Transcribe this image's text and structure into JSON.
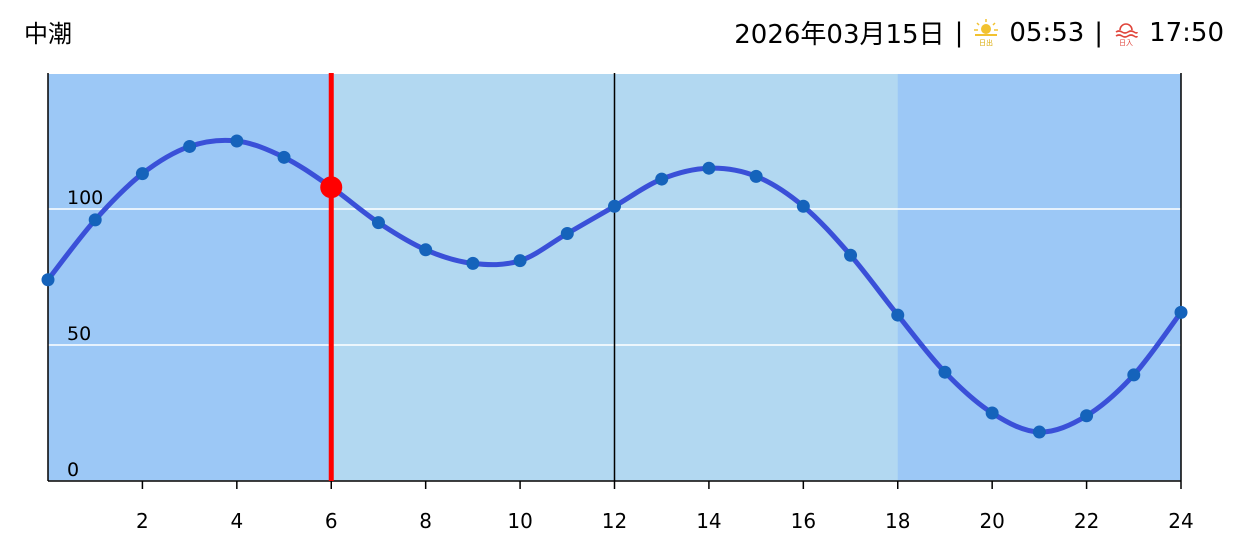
{
  "header": {
    "title": "中潮",
    "date": "2026年03月15日",
    "separator": "|",
    "sunrise_icon_label": "日出",
    "sunrise": "05:53",
    "sunset_icon_label": "日入",
    "sunset": "17:50"
  },
  "chart_data": {
    "type": "line",
    "x": [
      0,
      1,
      2,
      3,
      4,
      5,
      6,
      7,
      8,
      9,
      10,
      11,
      12,
      13,
      14,
      15,
      16,
      17,
      18,
      19,
      20,
      21,
      22,
      23,
      24
    ],
    "series": [
      {
        "color": "#3a50d8",
        "marker_color": "#1563bb",
        "values": [
          74,
          96,
          113,
          123,
          125,
          119,
          108,
          95,
          85,
          80,
          81,
          91,
          101,
          111,
          115,
          112,
          101,
          83,
          61,
          40,
          25,
          18,
          24,
          39,
          62
        ]
      }
    ],
    "highlight": {
      "x": 6,
      "y": 108,
      "color": "#ff0000"
    },
    "xlim": [
      0,
      24
    ],
    "ylim": [
      0,
      150
    ],
    "xticks": [
      2,
      4,
      6,
      8,
      10,
      12,
      14,
      16,
      18,
      20,
      22,
      24
    ],
    "yticks": [
      0,
      50,
      100
    ],
    "vertical_lines": [
      12,
      24
    ],
    "day_band": [
      6,
      18
    ],
    "night_color": "#9cc8f6",
    "day_color": "#b2d8f1",
    "grid": true
  }
}
